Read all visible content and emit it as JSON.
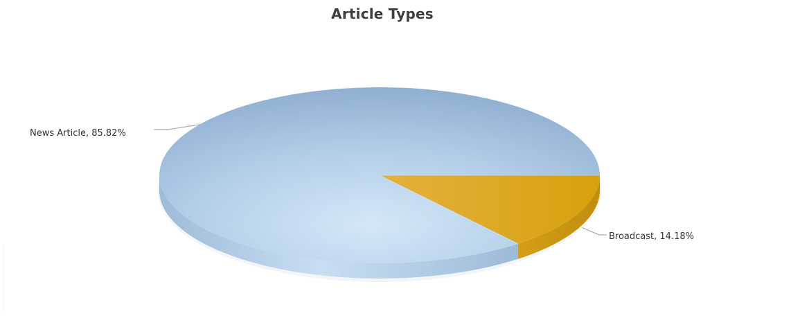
{
  "chart_data": {
    "type": "pie",
    "title": "Article Types",
    "slices": [
      {
        "label": "News Article",
        "value": 85.82,
        "label_text": "News Article, 85.82%",
        "color": "#8fb3d4"
      },
      {
        "label": "Broadcast",
        "value": 14.18,
        "label_text": "Broadcast, 14.18%",
        "color": "#d8a512"
      }
    ]
  }
}
